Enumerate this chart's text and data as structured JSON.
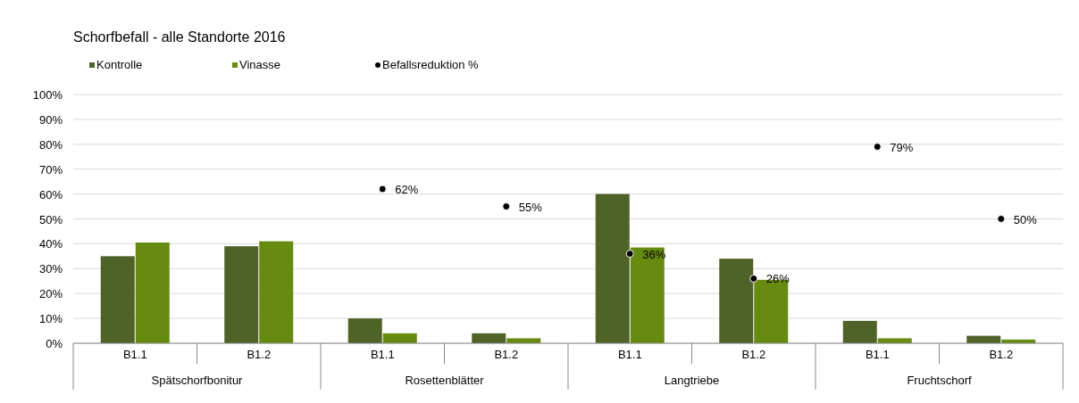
{
  "chart_data": {
    "type": "bar",
    "title": "Schorfbefall - alle Standorte 2016",
    "categories": [
      "B1.1",
      "B1.2",
      "B1.1",
      "B1.2",
      "B1.1",
      "B1.2",
      "B1.1",
      "B1.2"
    ],
    "annotations": [
      "Spätschorfbonitur",
      "Rosettenblätter",
      "Langtriebe",
      "Fruchtschorf"
    ],
    "series": [
      {
        "name": "Kontrolle",
        "color": "#4f6228",
        "values": [
          35,
          39,
          10,
          4,
          60,
          34,
          9,
          3
        ]
      },
      {
        "name": "Vinasse",
        "color": "#678b10",
        "values": [
          40.5,
          41,
          4,
          2,
          38.5,
          25.5,
          2,
          1.5
        ]
      },
      {
        "name": "Befallsreduktion %",
        "type": "scatter",
        "color": "#000000",
        "marker": "circle",
        "values": [
          null,
          null,
          62,
          55,
          36,
          26,
          79,
          50
        ],
        "value_labels": [
          null,
          null,
          "62%",
          "55%",
          "36%",
          "26%",
          "79%",
          "50%"
        ]
      }
    ],
    "ylim": [
      0,
      100
    ],
    "yticks": [
      {
        "value": 0,
        "label": "0%"
      },
      {
        "value": 10,
        "label": "10%"
      },
      {
        "value": 20,
        "label": "20%"
      },
      {
        "value": 30,
        "label": "30%"
      },
      {
        "value": 40,
        "label": "40%"
      },
      {
        "value": 50,
        "label": "50%"
      },
      {
        "value": 60,
        "label": "60%"
      },
      {
        "value": 70,
        "label": "70%"
      },
      {
        "value": 80,
        "label": "80%"
      },
      {
        "value": 90,
        "label": "90%"
      },
      {
        "value": 100,
        "label": "100%"
      }
    ],
    "grid": "y",
    "legend": "top left"
  }
}
